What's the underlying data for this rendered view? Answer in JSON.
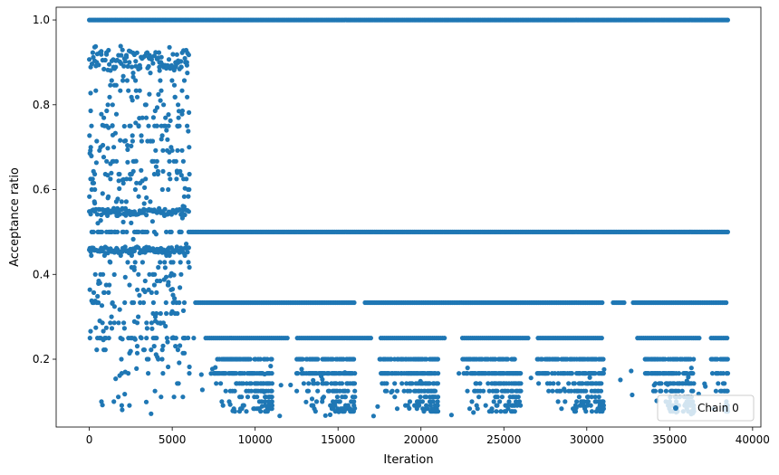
{
  "chart_data": {
    "type": "scatter",
    "title": "",
    "xlabel": "Iteration",
    "ylabel": "Acceptance ratio",
    "xlim": [
      -2000,
      40500
    ],
    "ylim": [
      0.04,
      1.03
    ],
    "xticks": [
      0,
      5000,
      10000,
      15000,
      20000,
      25000,
      30000,
      35000,
      40000
    ],
    "xtick_labels": [
      "0",
      "5000",
      "10000",
      "15000",
      "20000",
      "25000",
      "30000",
      "35000",
      "40000"
    ],
    "yticks": [
      0.2,
      0.4,
      0.6,
      0.8,
      1.0
    ],
    "ytick_labels": [
      "0.2",
      "0.4",
      "0.6",
      "0.8",
      "1.0"
    ],
    "grid": false,
    "legend": {
      "position": "lower-right",
      "entries": [
        "Chain 0"
      ]
    },
    "marker_color": "#1f77b4",
    "series": [
      {
        "name": "Chain 0",
        "bands": [
          {
            "y": 1.0,
            "x_start": 0,
            "x_end": 38500
          },
          {
            "y": 0.5,
            "x_start": 0,
            "x_end": 38500
          },
          {
            "y": 0.333,
            "x_start": 0,
            "x_end": 38500
          },
          {
            "y": 0.25,
            "x_start": 0,
            "x_end": 38500
          },
          {
            "y": 0.2,
            "x_start": 0,
            "x_end": 38000
          },
          {
            "y": 0.167,
            "x_start": 0,
            "x_end": 38000
          },
          {
            "y": 0.143,
            "x_start": 0,
            "x_end": 38000
          },
          {
            "y": 0.125,
            "x_start": 0,
            "x_end": 38000
          },
          {
            "y": 0.111,
            "x_start": 0,
            "x_end": 38000
          },
          {
            "y": 0.1,
            "x_start": 0,
            "x_end": 38000
          }
        ],
        "early_phase": {
          "x_start": 0,
          "x_end": 6000,
          "y_min": 0.07,
          "y_max": 0.94
        },
        "gaps_y_0_25": [
          [
            6400,
            7000
          ],
          [
            12000,
            12500
          ],
          [
            17000,
            17500
          ],
          [
            21500,
            22500
          ],
          [
            26500,
            27000
          ],
          [
            31000,
            33000
          ],
          [
            37000,
            37500
          ]
        ],
        "clusters_low_y": [
          {
            "x_start": 7500,
            "x_end": 11000
          },
          {
            "x_start": 12500,
            "x_end": 16000
          },
          {
            "x_start": 17500,
            "x_end": 21000
          },
          {
            "x_start": 22500,
            "x_end": 26000
          },
          {
            "x_start": 27000,
            "x_end": 31000
          },
          {
            "x_start": 33500,
            "x_end": 36500
          },
          {
            "x_start": 37500,
            "x_end": 38500
          }
        ]
      }
    ]
  }
}
